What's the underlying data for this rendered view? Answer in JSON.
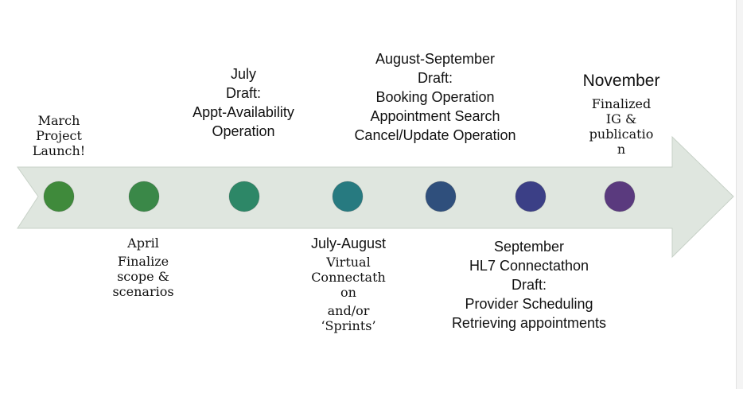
{
  "colors": {
    "arrow_fill": "#dfe6df",
    "arrow_stroke": "#c7d1c7"
  },
  "milestones": [
    {
      "id": "march",
      "color": "#3f8a3b",
      "lines": [
        "March",
        "Project",
        "Launch!"
      ]
    },
    {
      "id": "april",
      "color": "#3a8848",
      "lines": [
        "April",
        "Finalize",
        "scope &",
        "scenarios"
      ]
    },
    {
      "id": "july",
      "color": "#2d8767",
      "lines": [
        "July",
        "Draft:",
        "Appt-Availability",
        "Operation"
      ]
    },
    {
      "id": "july-august",
      "color": "#277a80",
      "lines": [
        "July-August",
        "Virtual",
        "Connectath",
        "on",
        "and/or",
        "‘Sprints’"
      ]
    },
    {
      "id": "august-september",
      "color": "#2f4f7c",
      "lines": [
        "August-September",
        "Draft:",
        "Booking Operation",
        "Appointment Search",
        "Cancel/Update Operation"
      ]
    },
    {
      "id": "september",
      "color": "#3b3f86",
      "lines": [
        "September",
        "HL7 Connectathon",
        "Draft:",
        "Provider Scheduling",
        "Retrieving appointments"
      ]
    },
    {
      "id": "november",
      "color": "#5a3a7e",
      "lines": [
        "November",
        "Finalized",
        "IG &",
        "publicatio",
        "n"
      ]
    }
  ]
}
